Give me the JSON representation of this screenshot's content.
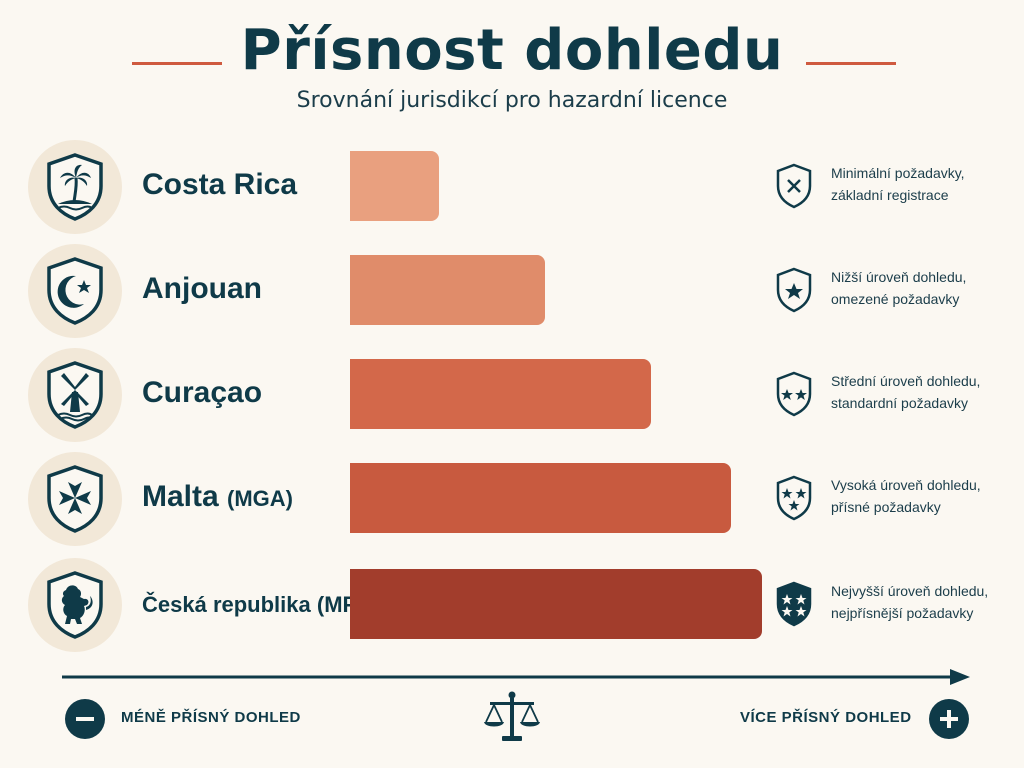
{
  "title": "Přísnost dohledu",
  "subtitle": "Srovnání jurisdikcí pro hazardní licence",
  "colors": {
    "navy": "#0f3a48",
    "accent": "#cf5a3f",
    "bars": [
      "#e9a07f",
      "#e08c6a",
      "#d3684a",
      "#c85a3f",
      "#a23d2c"
    ]
  },
  "chart_data": {
    "type": "bar",
    "orientation": "horizontal",
    "categories": [
      "Costa Rica",
      "Anjouan",
      "Curaçao",
      "Malta (MGA)",
      "Česká republika (MF)"
    ],
    "values": [
      1,
      2.2,
      3.4,
      4.3,
      4.65
    ],
    "xlim": [
      0,
      4.65
    ],
    "title": "Přísnost dohledu",
    "subtitle": "Srovnání jurisdikcí pro hazardní licence",
    "xlabel_left": "MÉNĚ PŘÍSNÝ DOHLED",
    "xlabel_right": "VÍCE PŘÍSNÝ DOHLED",
    "grid": false,
    "legend": "none"
  },
  "rows": [
    {
      "name": "Costa Rica",
      "abbr": "",
      "emblem": "palm-tree-icon",
      "badge": "shield-x-icon",
      "desc_line1": "Minimální požadavky,",
      "desc_line2": "základní registrace"
    },
    {
      "name": "Anjouan",
      "abbr": "",
      "emblem": "crescent-star-icon",
      "badge": "shield-one-star-icon",
      "desc_line1": "Nižší úroveň dohledu,",
      "desc_line2": "omezené požadavky"
    },
    {
      "name": "Curaçao",
      "abbr": "",
      "emblem": "windmill-icon",
      "badge": "shield-two-stars-icon",
      "desc_line1": "Střední úroveň dohledu,",
      "desc_line2": "standardní požadavky"
    },
    {
      "name": "Malta",
      "abbr": "(MGA)",
      "emblem": "maltese-cross-icon",
      "badge": "shield-three-stars-icon",
      "desc_line1": "Vysoká úroveň dohledu,",
      "desc_line2": "přísné požadavky"
    },
    {
      "name": "Česká republika (MF)",
      "abbr": "",
      "emblem": "lion-icon",
      "badge": "shield-four-stars-icon",
      "desc_line1": "Nejvyšší úroveň dohledu,",
      "desc_line2": "nejpřísnější požadavky"
    }
  ],
  "axis": {
    "left_label": "MÉNĚ PŘÍSNÝ DOHLED",
    "right_label": "VÍCE PŘÍSNÝ DOHLED",
    "left_icon": "minus-icon",
    "center_icon": "scales-icon",
    "right_icon": "plus-icon"
  }
}
